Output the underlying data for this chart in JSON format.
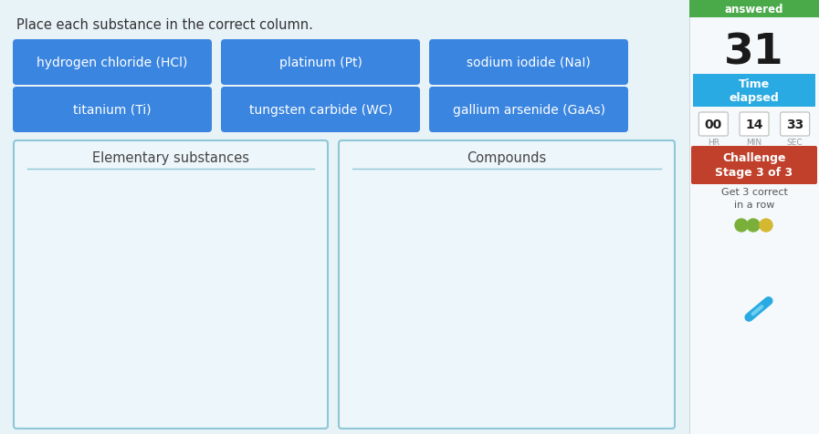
{
  "main_bg": "#ddeef5",
  "left_bg": "#e8f3f8",
  "instruction": "Place each substance in the correct column.",
  "buttons": [
    {
      "label": "hydrogen chloride (HCl)",
      "row": 0,
      "col": 0
    },
    {
      "label": "platinum (Pt)",
      "row": 0,
      "col": 1
    },
    {
      "label": "sodium iodide (NaI)",
      "row": 0,
      "col": 2
    },
    {
      "label": "titanium (Ti)",
      "row": 1,
      "col": 0
    },
    {
      "label": "tungsten carbide (WC)",
      "row": 1,
      "col": 1
    },
    {
      "label": "gallium arsenide (GaAs)",
      "row": 1,
      "col": 2
    }
  ],
  "button_color": "#3a85e0",
  "button_text_color": "#ffffff",
  "col_headers": [
    "Elementary substances",
    "Compounds"
  ],
  "right_panel_bg": "#f5f9fc",
  "answered_bg": "#4aaa4a",
  "answered_text": "answered",
  "score": "31",
  "time_label": "Time\nelapsed",
  "time_bg": "#29aae2",
  "hr": "00",
  "min": "14",
  "sec": "33",
  "challenge_bg": "#c0402b",
  "challenge_text": "Challenge\nStage 3 of 3",
  "get_correct": "Get 3 correct\nin a row",
  "dot_colors": [
    "#7ab03a",
    "#7ab03a",
    "#d4b830"
  ],
  "pencil_color": "#29aae2",
  "box_border": "#8ec8d8",
  "box_fill": "#edf6fa"
}
